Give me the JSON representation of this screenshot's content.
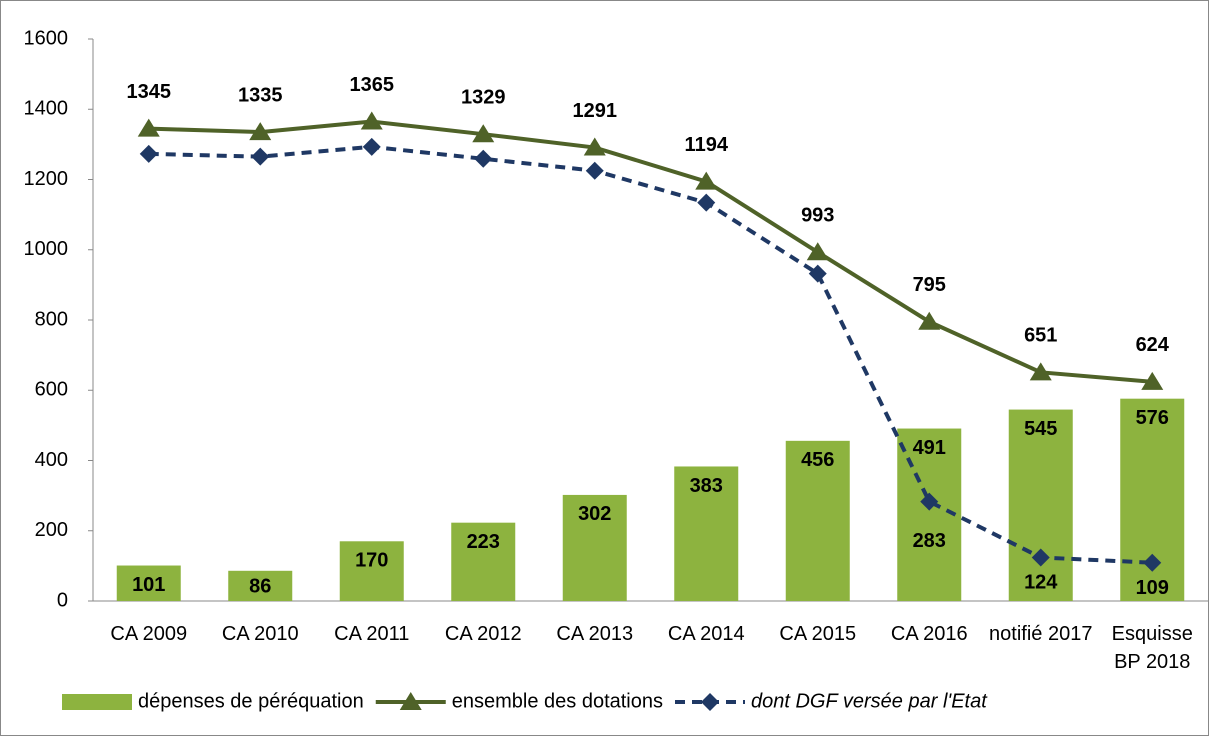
{
  "chart_data": {
    "type": "bar-line",
    "categories": [
      "CA 2009",
      "CA 2010",
      "CA 2011",
      "CA 2012",
      "CA 2013",
      "CA 2014",
      "CA 2015",
      "CA 2016",
      "notifié 2017",
      "Esquisse BP 2018"
    ],
    "series": [
      {
        "name": "dépenses de péréquation",
        "type": "bar",
        "color": "#8db33f",
        "values": [
          101,
          86,
          170,
          223,
          302,
          383,
          456,
          491,
          545,
          576
        ]
      },
      {
        "name": "ensemble des dotations",
        "type": "line",
        "marker": "triangle",
        "color": "#4f6228",
        "values": [
          1345,
          1335,
          1365,
          1329,
          1291,
          1194,
          993,
          795,
          651,
          624
        ]
      },
      {
        "name": "dont DGF versée par l'Etat",
        "type": "line",
        "marker": "diamond",
        "dashed": true,
        "color": "#1f3864",
        "values": [
          1273,
          1265,
          1293,
          1259,
          1225,
          1134,
          932,
          283,
          124,
          109
        ],
        "value_labels": [
          null,
          null,
          null,
          null,
          null,
          null,
          null,
          "283",
          "124",
          "109"
        ]
      }
    ],
    "ylim": [
      0,
      1600
    ],
    "yticks": [
      0,
      200,
      400,
      600,
      800,
      1000,
      1200,
      1400,
      1600
    ],
    "grid": false,
    "legend": "bottom"
  }
}
